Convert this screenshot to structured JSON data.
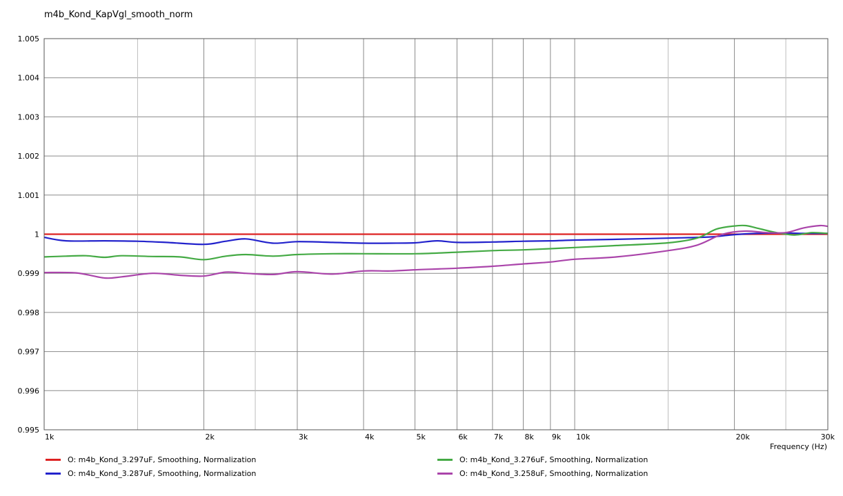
{
  "title": "m4b_Kond_KapVgl_smooth_norm",
  "chart_data": {
    "type": "line",
    "xlabel": "Frequency  (Hz)",
    "x_scale": "log",
    "xlim": [
      1000,
      30000
    ],
    "ylim": [
      0.995,
      1.005
    ],
    "grid": true,
    "legend_position": "bottom",
    "y_ticks": [
      {
        "v": 1.005,
        "label": "1.005"
      },
      {
        "v": 1.004,
        "label": "1.004"
      },
      {
        "v": 1.003,
        "label": "1.003"
      },
      {
        "v": 1.002,
        "label": "1.002"
      },
      {
        "v": 1.001,
        "label": "1.001"
      },
      {
        "v": 1.0,
        "label": "1"
      },
      {
        "v": 0.999,
        "label": "0.999"
      },
      {
        "v": 0.998,
        "label": "0.998"
      },
      {
        "v": 0.997,
        "label": "0.997"
      },
      {
        "v": 0.996,
        "label": "0.996"
      },
      {
        "v": 0.995,
        "label": "0.995"
      }
    ],
    "x_ticks": [
      {
        "v": 1000,
        "label": "1k"
      },
      {
        "v": 2000,
        "label": "2k"
      },
      {
        "v": 3000,
        "label": "3k"
      },
      {
        "v": 4000,
        "label": "4k"
      },
      {
        "v": 5000,
        "label": "5k"
      },
      {
        "v": 6000,
        "label": "6k"
      },
      {
        "v": 7000,
        "label": "7k"
      },
      {
        "v": 8000,
        "label": "8k"
      },
      {
        "v": 9000,
        "label": "9k"
      },
      {
        "v": 10000,
        "label": "10k"
      },
      {
        "v": 20000,
        "label": "20k"
      },
      {
        "v": 30000,
        "label": "30k"
      }
    ],
    "x_minor_grid": [
      1500,
      2500,
      15000,
      25000
    ],
    "series": [
      {
        "name": "O: m4b_Kond_3.297uF, Smoothing, Normalization",
        "color": "#dd2222",
        "points": [
          [
            1000,
            1.0
          ],
          [
            30000,
            1.0
          ]
        ]
      },
      {
        "name": "O: m4b_Kond_3.287uF, Smoothing, Normalization",
        "color": "#2222cc",
        "points": [
          [
            1000,
            0.99992
          ],
          [
            1100,
            0.99983
          ],
          [
            1300,
            0.99983
          ],
          [
            1500,
            0.99982
          ],
          [
            1700,
            0.99979
          ],
          [
            2000,
            0.99974
          ],
          [
            2200,
            0.99982
          ],
          [
            2400,
            0.99988
          ],
          [
            2700,
            0.99977
          ],
          [
            3000,
            0.99981
          ],
          [
            3500,
            0.99979
          ],
          [
            4000,
            0.99977
          ],
          [
            4500,
            0.99977
          ],
          [
            5000,
            0.99978
          ],
          [
            5500,
            0.99983
          ],
          [
            6000,
            0.99979
          ],
          [
            7000,
            0.9998
          ],
          [
            8000,
            0.99982
          ],
          [
            9000,
            0.99983
          ],
          [
            10000,
            0.99985
          ],
          [
            12000,
            0.99987
          ],
          [
            15000,
            0.9999
          ],
          [
            18000,
            0.99993
          ],
          [
            20000,
            0.99999
          ],
          [
            22000,
            1.00002
          ],
          [
            25000,
            1.00003
          ],
          [
            27000,
            1.00002
          ],
          [
            30000,
            1.00002
          ]
        ]
      },
      {
        "name": "O: m4b_Kond_3.276uF, Smoothing, Normalization",
        "color": "#44aa44",
        "points": [
          [
            1000,
            0.99942
          ],
          [
            1100,
            0.99944
          ],
          [
            1200,
            0.99945
          ],
          [
            1300,
            0.99941
          ],
          [
            1400,
            0.99945
          ],
          [
            1600,
            0.99943
          ],
          [
            1800,
            0.99942
          ],
          [
            2000,
            0.99935
          ],
          [
            2200,
            0.99944
          ],
          [
            2400,
            0.99948
          ],
          [
            2700,
            0.99944
          ],
          [
            3000,
            0.99948
          ],
          [
            3500,
            0.9995
          ],
          [
            4000,
            0.9995
          ],
          [
            5000,
            0.9995
          ],
          [
            6000,
            0.99954
          ],
          [
            7000,
            0.99958
          ],
          [
            8000,
            0.9996
          ],
          [
            9000,
            0.99963
          ],
          [
            10000,
            0.99966
          ],
          [
            12000,
            0.99971
          ],
          [
            15000,
            0.99978
          ],
          [
            17000,
            0.9999
          ],
          [
            18500,
            1.00013
          ],
          [
            20000,
            1.00021
          ],
          [
            21000,
            1.00022
          ],
          [
            22000,
            1.00016
          ],
          [
            24000,
            1.00004
          ],
          [
            26000,
            0.99998
          ],
          [
            28000,
            1.00004
          ],
          [
            30000,
            1.00002
          ]
        ]
      },
      {
        "name": "O: m4b_Kond_3.258uF, Smoothing, Normalization",
        "color": "#aa44aa",
        "points": [
          [
            1000,
            0.99902
          ],
          [
            1150,
            0.99901
          ],
          [
            1300,
            0.99888
          ],
          [
            1400,
            0.99891
          ],
          [
            1600,
            0.999
          ],
          [
            1800,
            0.99895
          ],
          [
            2000,
            0.99893
          ],
          [
            2200,
            0.99903
          ],
          [
            2400,
            0.999
          ],
          [
            2700,
            0.99897
          ],
          [
            3000,
            0.99904
          ],
          [
            3500,
            0.99898
          ],
          [
            4000,
            0.99906
          ],
          [
            4500,
            0.99906
          ],
          [
            5000,
            0.99909
          ],
          [
            6000,
            0.99913
          ],
          [
            7000,
            0.99918
          ],
          [
            8000,
            0.99924
          ],
          [
            9000,
            0.99929
          ],
          [
            10000,
            0.99936
          ],
          [
            12000,
            0.99942
          ],
          [
            15000,
            0.99958
          ],
          [
            17000,
            0.99972
          ],
          [
            19000,
            1.0
          ],
          [
            21000,
            1.00008
          ],
          [
            23000,
            1.00004
          ],
          [
            25000,
            1.00004
          ],
          [
            27000,
            1.00016
          ],
          [
            29000,
            1.00022
          ],
          [
            30000,
            1.0002
          ]
        ]
      }
    ]
  }
}
